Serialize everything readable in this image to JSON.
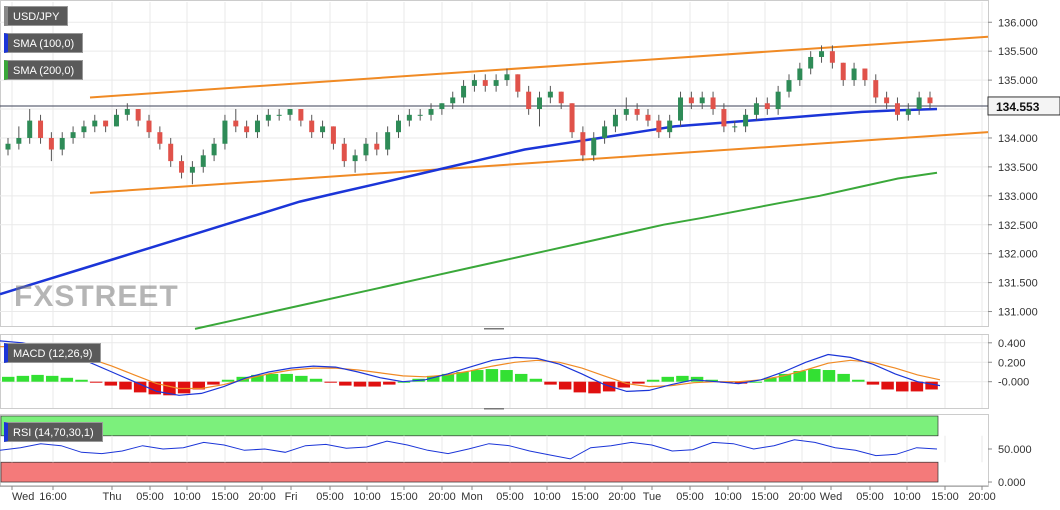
{
  "chart_data": [
    {
      "type": "candlestick",
      "title": "USD/JPY",
      "current_price": "134.553",
      "y_ticks": [
        "136.000",
        "135.500",
        "135.000",
        "134.500",
        "134.000",
        "133.500",
        "133.000",
        "132.500",
        "132.000",
        "131.500",
        "131.000"
      ],
      "ylim": [
        130.75,
        136.35
      ],
      "series": [
        {
          "name": "SMA (100,0)",
          "color": "#1b35d8"
        },
        {
          "name": "SMA (200,0)",
          "color": "#3aa83a"
        }
      ],
      "candles": [
        [
          133.8,
          134.0,
          133.7,
          133.9
        ],
        [
          133.9,
          134.2,
          133.8,
          134.0
        ],
        [
          134.0,
          134.5,
          133.9,
          134.3
        ],
        [
          134.3,
          134.4,
          133.9,
          134.0
        ],
        [
          134.0,
          134.1,
          133.6,
          133.8
        ],
        [
          133.8,
          134.1,
          133.7,
          134.0
        ],
        [
          134.0,
          134.2,
          133.9,
          134.1
        ],
        [
          134.1,
          134.3,
          134.0,
          134.2
        ],
        [
          134.2,
          134.4,
          134.1,
          134.3
        ],
        [
          134.3,
          134.3,
          134.1,
          134.2
        ],
        [
          134.2,
          134.5,
          134.2,
          134.4
        ],
        [
          134.4,
          134.6,
          134.3,
          134.5
        ],
        [
          134.5,
          134.5,
          134.2,
          134.3
        ],
        [
          134.3,
          134.4,
          134.0,
          134.1
        ],
        [
          134.1,
          134.2,
          133.8,
          133.9
        ],
        [
          133.9,
          134.0,
          133.5,
          133.6
        ],
        [
          133.6,
          133.7,
          133.3,
          133.4
        ],
        [
          133.4,
          133.6,
          133.2,
          133.5
        ],
        [
          133.5,
          133.8,
          133.4,
          133.7
        ],
        [
          133.7,
          134.0,
          133.6,
          133.9
        ],
        [
          133.9,
          134.4,
          133.8,
          134.3
        ],
        [
          134.3,
          134.5,
          134.1,
          134.2
        ],
        [
          134.2,
          134.3,
          134.0,
          134.1
        ],
        [
          134.1,
          134.4,
          134.0,
          134.3
        ],
        [
          134.3,
          134.5,
          134.2,
          134.4
        ],
        [
          134.4,
          134.5,
          134.3,
          134.4
        ],
        [
          134.4,
          134.5,
          134.3,
          134.5
        ],
        [
          134.5,
          134.5,
          134.2,
          134.3
        ],
        [
          134.3,
          134.4,
          134.0,
          134.1
        ],
        [
          134.1,
          134.3,
          134.0,
          134.2
        ],
        [
          134.2,
          134.2,
          133.8,
          133.9
        ],
        [
          133.9,
          134.0,
          133.5,
          133.6
        ],
        [
          133.6,
          133.8,
          133.4,
          133.7
        ],
        [
          133.7,
          134.0,
          133.6,
          133.9
        ],
        [
          133.9,
          134.1,
          133.7,
          133.8
        ],
        [
          133.8,
          134.2,
          133.7,
          134.1
        ],
        [
          134.1,
          134.4,
          134.0,
          134.3
        ],
        [
          134.3,
          134.5,
          134.2,
          134.4
        ],
        [
          134.4,
          134.5,
          134.3,
          134.4
        ],
        [
          134.4,
          134.6,
          134.3,
          134.5
        ],
        [
          134.5,
          134.6,
          134.4,
          134.6
        ],
        [
          134.6,
          134.8,
          134.5,
          134.7
        ],
        [
          134.7,
          135.0,
          134.6,
          134.9
        ],
        [
          134.9,
          135.1,
          134.8,
          135.0
        ],
        [
          135.0,
          135.1,
          134.8,
          134.9
        ],
        [
          134.9,
          135.1,
          134.8,
          135.0
        ],
        [
          135.0,
          135.2,
          134.9,
          135.1
        ],
        [
          135.1,
          135.1,
          134.7,
          134.8
        ],
        [
          134.8,
          134.9,
          134.4,
          134.5
        ],
        [
          134.5,
          134.8,
          134.2,
          134.7
        ],
        [
          134.7,
          134.9,
          134.6,
          134.8
        ],
        [
          134.8,
          134.8,
          134.5,
          134.6
        ],
        [
          134.6,
          134.6,
          134.0,
          134.1
        ],
        [
          134.1,
          134.2,
          133.6,
          133.7
        ],
        [
          133.7,
          134.1,
          133.6,
          134.0
        ],
        [
          134.0,
          134.3,
          133.9,
          134.2
        ],
        [
          134.2,
          134.5,
          134.1,
          134.4
        ],
        [
          134.4,
          134.7,
          134.3,
          134.5
        ],
        [
          134.5,
          134.6,
          134.3,
          134.4
        ],
        [
          134.4,
          134.5,
          134.2,
          134.3
        ],
        [
          134.3,
          134.4,
          134.0,
          134.1
        ],
        [
          134.1,
          134.4,
          134.0,
          134.3
        ],
        [
          134.3,
          134.8,
          134.2,
          134.7
        ],
        [
          134.7,
          134.8,
          134.5,
          134.6
        ],
        [
          134.6,
          134.8,
          134.5,
          134.7
        ],
        [
          134.7,
          134.8,
          134.4,
          134.5
        ],
        [
          134.5,
          134.6,
          134.1,
          134.2
        ],
        [
          134.2,
          134.3,
          134.1,
          134.2
        ],
        [
          134.2,
          134.5,
          134.1,
          134.4
        ],
        [
          134.4,
          134.7,
          134.3,
          134.6
        ],
        [
          134.6,
          134.7,
          134.4,
          134.5
        ],
        [
          134.5,
          134.9,
          134.4,
          134.8
        ],
        [
          134.8,
          135.1,
          134.7,
          135.0
        ],
        [
          135.0,
          135.3,
          134.9,
          135.2
        ],
        [
          135.2,
          135.5,
          135.1,
          135.4
        ],
        [
          135.4,
          135.6,
          135.3,
          135.5
        ],
        [
          135.5,
          135.6,
          135.2,
          135.3
        ],
        [
          135.3,
          135.3,
          134.9,
          135.0
        ],
        [
          135.0,
          135.3,
          134.9,
          135.2
        ],
        [
          135.2,
          135.2,
          134.9,
          135.0
        ],
        [
          135.0,
          135.1,
          134.6,
          134.7
        ],
        [
          134.7,
          134.8,
          134.5,
          134.6
        ],
        [
          134.6,
          134.7,
          134.3,
          134.4
        ],
        [
          134.4,
          134.6,
          134.3,
          134.5
        ],
        [
          134.5,
          134.8,
          134.4,
          134.7
        ],
        [
          134.7,
          134.8,
          134.5,
          134.6
        ]
      ],
      "sma100": [
        131.3,
        131.5,
        131.7,
        131.9,
        132.1,
        132.3,
        132.5,
        132.7,
        132.9,
        133.05,
        133.2,
        133.35,
        133.5,
        133.65,
        133.8,
        133.9,
        134.0,
        134.1,
        134.2,
        134.25,
        134.3,
        134.35,
        134.4,
        134.45,
        134.48,
        134.5
      ],
      "sma200": [
        130.7,
        130.85,
        131.0,
        131.15,
        131.3,
        131.45,
        131.6,
        131.75,
        131.9,
        132.05,
        132.2,
        132.35,
        132.5,
        132.62,
        132.75,
        132.88,
        133.0,
        133.15,
        133.3,
        133.4
      ],
      "channel_upper": [
        134.7,
        135.75
      ],
      "channel_lower": [
        133.05,
        134.1
      ]
    },
    {
      "type": "histogram",
      "title": "MACD (12,26,9)",
      "y_ticks": [
        "0.400",
        "0.200",
        "-0.000"
      ],
      "ylim": [
        -0.25,
        0.47
      ],
      "histogram": [
        0.05,
        0.06,
        0.07,
        0.06,
        0.04,
        0.02,
        -0.01,
        -0.04,
        -0.08,
        -0.11,
        -0.13,
        -0.14,
        -0.12,
        -0.08,
        -0.03,
        0.02,
        0.05,
        0.07,
        0.08,
        0.08,
        0.06,
        0.03,
        -0.01,
        -0.04,
        -0.05,
        -0.05,
        -0.03,
        0.0,
        0.03,
        0.06,
        0.08,
        0.1,
        0.12,
        0.13,
        0.12,
        0.08,
        0.03,
        -0.03,
        -0.08,
        -0.11,
        -0.12,
        -0.1,
        -0.06,
        -0.02,
        0.02,
        0.05,
        0.06,
        0.05,
        0.02,
        -0.01,
        -0.02,
        0.0,
        0.04,
        0.08,
        0.11,
        0.13,
        0.12,
        0.08,
        0.02,
        -0.03,
        -0.08,
        -0.1,
        -0.1,
        -0.08
      ],
      "macd": [
        0.42,
        0.4,
        0.35,
        0.28,
        0.2,
        0.1,
        0.0,
        -0.1,
        -0.14,
        -0.12,
        -0.05,
        0.04,
        0.1,
        0.14,
        0.16,
        0.15,
        0.1,
        0.04,
        0.0,
        0.02,
        0.08,
        0.15,
        0.22,
        0.25,
        0.24,
        0.18,
        0.08,
        -0.03,
        -0.1,
        -0.09,
        -0.03,
        0.02,
        0.0,
        -0.02,
        0.02,
        0.1,
        0.2,
        0.28,
        0.25,
        0.18,
        0.08,
        0.0,
        -0.04
      ],
      "signal": [
        0.36,
        0.36,
        0.34,
        0.3,
        0.24,
        0.16,
        0.07,
        -0.02,
        -0.07,
        -0.07,
        -0.03,
        0.03,
        0.08,
        0.12,
        0.14,
        0.14,
        0.12,
        0.09,
        0.06,
        0.05,
        0.07,
        0.11,
        0.16,
        0.2,
        0.22,
        0.2,
        0.14,
        0.06,
        -0.02,
        -0.05,
        -0.04,
        -0.01,
        0.0,
        0.0,
        0.02,
        0.06,
        0.12,
        0.19,
        0.22,
        0.2,
        0.14,
        0.07,
        0.02
      ]
    },
    {
      "type": "line",
      "title": "RSI (14,70,30,1)",
      "y_ticks": [
        "50.000",
        "0.000"
      ],
      "ylim": [
        -3,
        100
      ],
      "overbought": 70,
      "oversold": 30,
      "rsi": [
        48,
        52,
        58,
        55,
        45,
        43,
        47,
        55,
        50,
        52,
        60,
        56,
        48,
        50,
        45,
        55,
        57,
        51,
        53,
        62,
        56,
        48,
        43,
        50,
        58,
        55,
        47,
        41,
        35,
        52,
        55,
        60,
        56,
        47,
        49,
        60,
        58,
        50,
        55,
        64,
        60,
        52,
        48,
        40,
        42,
        52,
        50
      ]
    }
  ],
  "x_ticks": [
    "Wed",
    "16:00",
    "Thu",
    "05:00",
    "10:00",
    "15:00",
    "20:00",
    "Fri",
    "05:00",
    "10:00",
    "15:00",
    "20:00",
    "Mon",
    "05:00",
    "10:00",
    "15:00",
    "20:00",
    "Tue",
    "05:00",
    "10:00",
    "15:00",
    "20:00",
    "Wed",
    "05:00",
    "10:00",
    "15:00",
    "20:00"
  ],
  "watermark": "FXSTREET"
}
